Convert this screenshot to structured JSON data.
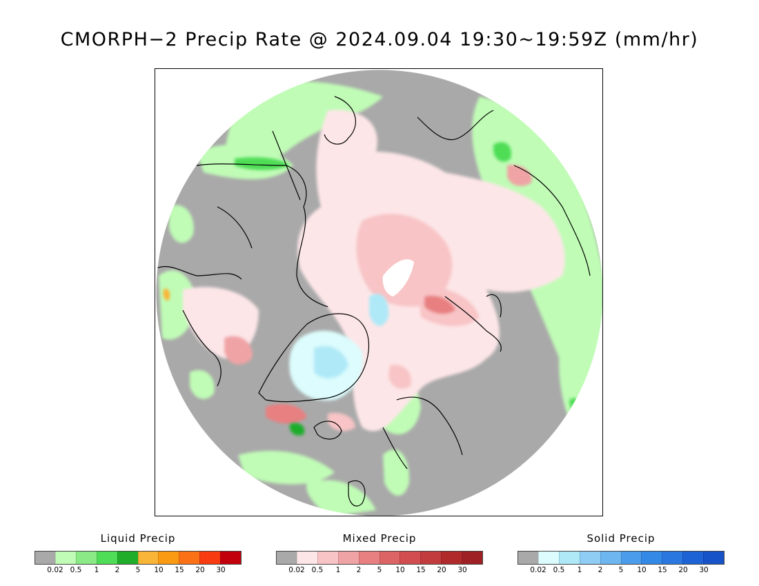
{
  "title": "CMORPH−2 Precip Rate @ 2024.09.04 19:30~19:59Z (mm/hr)",
  "map": {
    "projection": "north-polar-stereographic",
    "no_data_color": "#a9a9a9",
    "coastline_color": "#000000"
  },
  "legends": [
    {
      "key": "liquid",
      "title": "Liquid Precip",
      "colors": [
        "#a9a9a9",
        "#c0fcb6",
        "#8be986",
        "#4fdd57",
        "#1fad2a",
        "#f9b537",
        "#f99a12",
        "#fb7216",
        "#f83b10",
        "#c2000b"
      ],
      "ticks": [
        "0.02",
        "0.5",
        "1",
        "2",
        "5",
        "10",
        "15",
        "20",
        "30"
      ]
    },
    {
      "key": "mixed",
      "title": "Mixed Precip",
      "colors": [
        "#a9a9a9",
        "#fde6e8",
        "#f8c4c6",
        "#f0a3a5",
        "#e88081",
        "#dc6465",
        "#d24d4f",
        "#c23b3d",
        "#b02a2c",
        "#9e2024"
      ],
      "ticks": [
        "0.02",
        "0.5",
        "1",
        "2",
        "5",
        "10",
        "15",
        "20",
        "30"
      ]
    },
    {
      "key": "solid",
      "title": "Solid Precip",
      "colors": [
        "#a9a9a9",
        "#dcfcfd",
        "#afe9f8",
        "#8fcdf5",
        "#6db6f0",
        "#4b9cea",
        "#3489e6",
        "#2a77e0",
        "#1e63d6",
        "#1652c8"
      ],
      "ticks": [
        "0.02",
        "0.5",
        "1",
        "2",
        "5",
        "10",
        "15",
        "20",
        "30"
      ]
    }
  ]
}
